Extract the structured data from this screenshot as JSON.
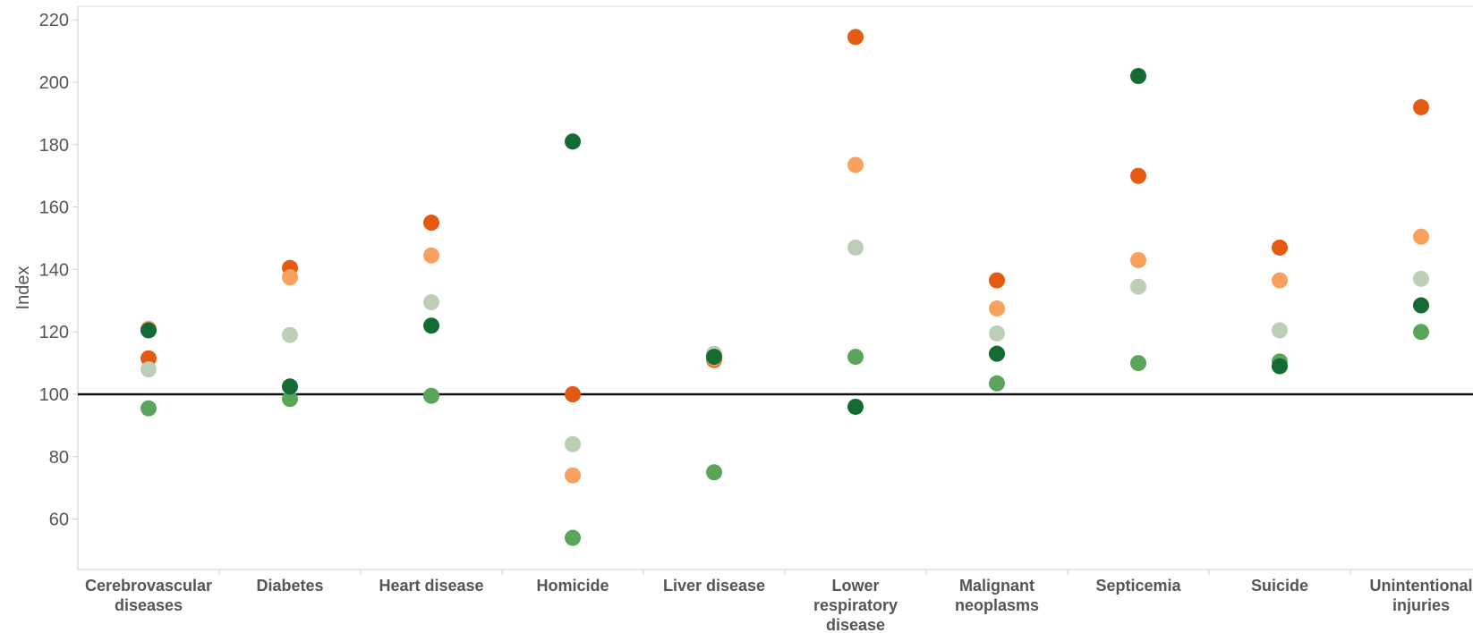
{
  "chart_data": {
    "type": "scatter",
    "ylabel": "Index",
    "ylim": [
      44,
      224
    ],
    "yticks": [
      60,
      80,
      100,
      120,
      140,
      160,
      180,
      200,
      220
    ],
    "reference_line": 100,
    "grid": false,
    "categories": [
      "Cerebrovascular diseases",
      "Diabetes",
      "Heart disease",
      "Homicide",
      "Liver disease",
      "Lower respiratory disease",
      "Malignant neoplasms",
      "Septicemia",
      "Suicide",
      "Unintentional injuries"
    ],
    "category_label_lines": [
      [
        "Cerebrovascular",
        "diseases"
      ],
      [
        "Diabetes"
      ],
      [
        "Heart disease"
      ],
      [
        "Homicide"
      ],
      [
        "Liver disease"
      ],
      [
        "Lower",
        "respiratory",
        "disease"
      ],
      [
        "Malignant",
        "neoplasms"
      ],
      [
        "Septicemia"
      ],
      [
        "Suicide"
      ],
      [
        "Unintentional",
        "injuries"
      ]
    ],
    "series": [
      {
        "color": "#e35a10",
        "values": [
          111.5,
          140.5,
          155,
          100,
          111,
          214.5,
          136.5,
          170,
          147,
          192
        ]
      },
      {
        "color": "#f9a05c",
        "values": [
          121,
          137.5,
          144.5,
          74,
          111.5,
          173.5,
          127.5,
          143,
          136.5,
          150.5
        ]
      },
      {
        "color": "#bccfb6",
        "values": [
          108,
          119,
          129.5,
          84,
          113,
          147,
          119.5,
          134.5,
          120.5,
          137
        ]
      },
      {
        "color": "#5aa55a",
        "values": [
          95.5,
          98.5,
          99.5,
          54,
          75,
          112,
          103.5,
          110,
          110.5,
          120
        ]
      },
      {
        "color": "#126b32",
        "values": [
          120.5,
          102.5,
          122,
          181,
          112,
          96,
          113,
          202,
          109,
          128.5
        ]
      }
    ]
  }
}
